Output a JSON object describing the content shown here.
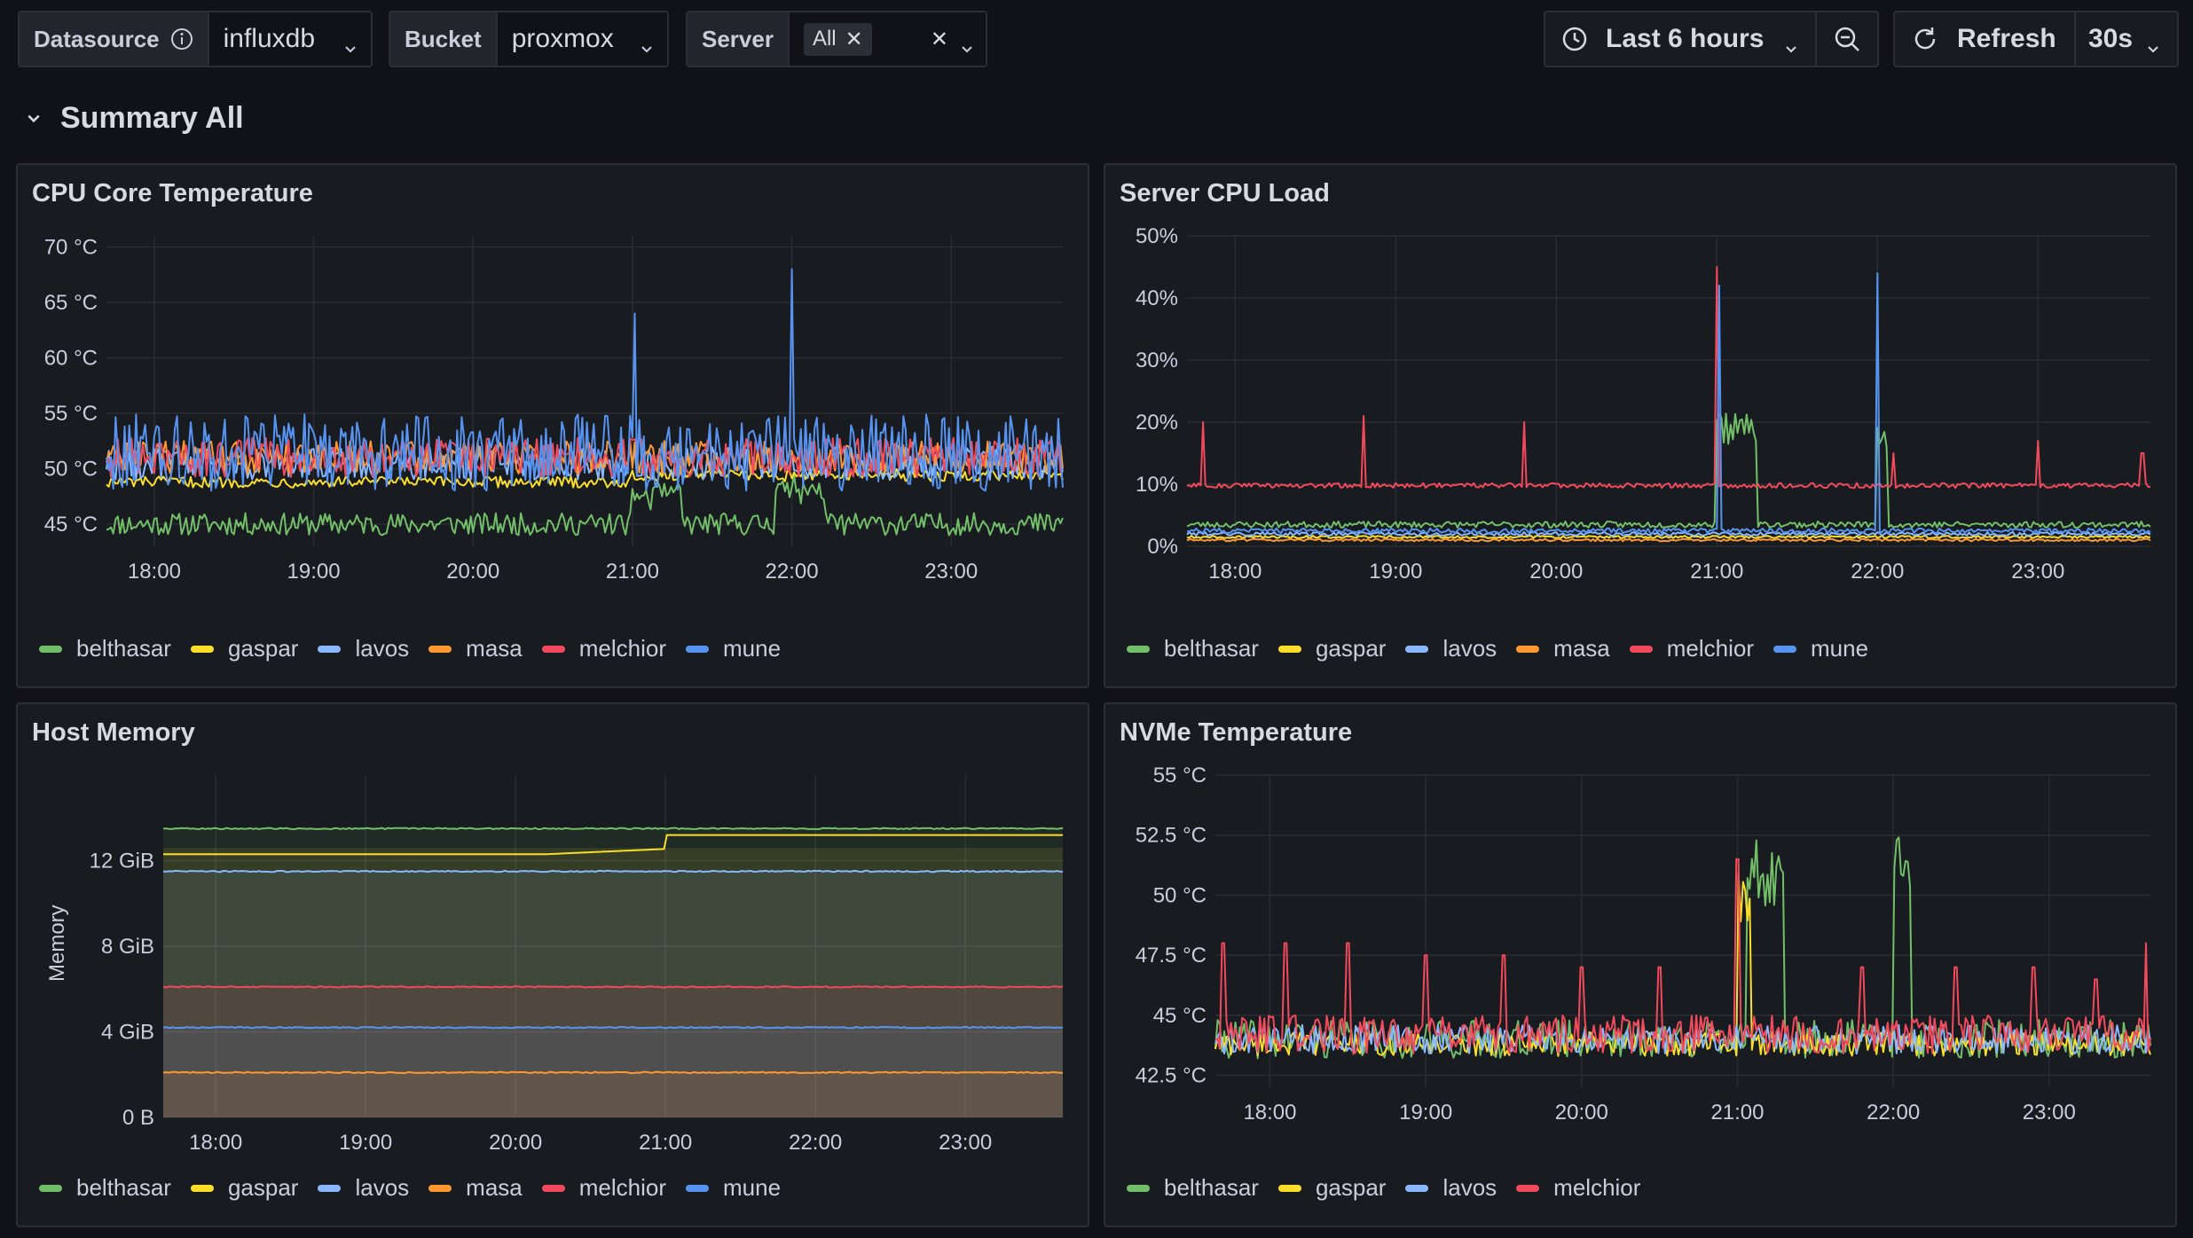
{
  "toolbar": {
    "datasource": {
      "label": "Datasource",
      "value": "influxdb"
    },
    "bucket": {
      "label": "Bucket",
      "value": "proxmox"
    },
    "server": {
      "label": "Server",
      "chip": "All"
    },
    "time_range": "Last 6 hours",
    "refresh_label": "Refresh",
    "refresh_interval": "30s"
  },
  "row": {
    "title": "Summary All"
  },
  "colors": {
    "belthasar": "#73bf69",
    "gaspar": "#fade2a",
    "lavos": "#8ab8ff",
    "masa": "#ff9830",
    "melchior": "#f2495c",
    "mune": "#5794f2"
  },
  "panels": [
    {
      "id": "cpu-temp",
      "title": "CPU Core Temperature",
      "legend": [
        "belthasar",
        "gaspar",
        "lavos",
        "masa",
        "melchior",
        "mune"
      ],
      "chart_data": {
        "type": "line",
        "x_ticks": [
          "18:00",
          "19:00",
          "20:00",
          "21:00",
          "22:00",
          "23:00"
        ],
        "x_range": [
          17.7,
          23.7
        ],
        "y_ticks": [
          {
            "v": 45,
            "label": "45 °C"
          },
          {
            "v": 50,
            "label": "50 °C"
          },
          {
            "v": 55,
            "label": "55 °C"
          },
          {
            "v": 60,
            "label": "60 °C"
          },
          {
            "v": 65,
            "label": "65 °C"
          },
          {
            "v": 70,
            "label": "70 °C"
          }
        ],
        "ylim": [
          43,
          71
        ],
        "series": [
          {
            "name": "belthasar",
            "base": 45.0,
            "noise": 1.0,
            "events": [
              [
                21.0,
                21.3,
                48
              ],
              [
                21.9,
                22.2,
                48.5
              ]
            ],
            "spikes": []
          },
          {
            "name": "gaspar",
            "base": 48.8,
            "noise": 0.5,
            "events": [
              [
                21.0,
                23.7,
                49.5
              ]
            ],
            "spikes": []
          },
          {
            "name": "lavos",
            "base": 50.5,
            "noise": 1.5,
            "events": [],
            "spikes": []
          },
          {
            "name": "masa",
            "base": 51.0,
            "noise": 1.5,
            "events": [],
            "spikes": []
          },
          {
            "name": "melchior",
            "base": 51.0,
            "noise": 1.8,
            "events": [],
            "spikes": []
          },
          {
            "name": "mune",
            "base": 51.5,
            "noise": 3.5,
            "events": [],
            "spikes": [
              [
                21.02,
                64
              ],
              [
                22.0,
                68
              ]
            ]
          }
        ]
      }
    },
    {
      "id": "cpu-load",
      "title": "Server CPU Load",
      "legend": [
        "belthasar",
        "gaspar",
        "lavos",
        "masa",
        "melchior",
        "mune"
      ],
      "chart_data": {
        "type": "line",
        "x_ticks": [
          "18:00",
          "19:00",
          "20:00",
          "21:00",
          "22:00",
          "23:00"
        ],
        "x_range": [
          17.7,
          23.7
        ],
        "y_ticks": [
          {
            "v": 0,
            "label": "0%"
          },
          {
            "v": 10,
            "label": "10%"
          },
          {
            "v": 20,
            "label": "20%"
          },
          {
            "v": 30,
            "label": "30%"
          },
          {
            "v": 40,
            "label": "40%"
          },
          {
            "v": 50,
            "label": "50%"
          }
        ],
        "ylim": [
          0,
          50
        ],
        "series": [
          {
            "name": "belthasar",
            "base": 3.5,
            "noise": 0.5,
            "events": [
              [
                21.0,
                21.25,
                21
              ],
              [
                22.0,
                22.07,
                20
              ]
            ],
            "spikes": []
          },
          {
            "name": "gaspar",
            "base": 1.5,
            "noise": 0.2,
            "events": [],
            "spikes": []
          },
          {
            "name": "lavos",
            "base": 2.0,
            "noise": 0.3,
            "events": [],
            "spikes": []
          },
          {
            "name": "masa",
            "base": 1.0,
            "noise": 0.2,
            "events": [],
            "spikes": []
          },
          {
            "name": "melchior",
            "base": 9.8,
            "noise": 0.4,
            "events": [],
            "spikes": [
              [
                17.8,
                20
              ],
              [
                18.8,
                21
              ],
              [
                19.8,
                20
              ],
              [
                21.0,
                45
              ],
              [
                22.1,
                15
              ],
              [
                23.0,
                17
              ],
              [
                23.65,
                15
              ]
            ]
          },
          {
            "name": "mune",
            "base": 2.5,
            "noise": 0.4,
            "events": [],
            "spikes": [
              [
                21.02,
                42
              ],
              [
                22.0,
                44
              ]
            ]
          }
        ]
      }
    },
    {
      "id": "host-memory",
      "title": "Host Memory",
      "y_label": "Memory",
      "legend": [
        "belthasar",
        "gaspar",
        "lavos",
        "masa",
        "melchior",
        "mune"
      ],
      "chart_data": {
        "type": "area",
        "x_ticks": [
          "18:00",
          "19:00",
          "20:00",
          "21:00",
          "22:00",
          "23:00"
        ],
        "x_range": [
          17.65,
          23.65
        ],
        "y_ticks": [
          {
            "v": 0,
            "label": "0 B"
          },
          {
            "v": 4,
            "label": "4 GiB"
          },
          {
            "v": 8,
            "label": "8 GiB"
          },
          {
            "v": 12,
            "label": "12 GiB"
          }
        ],
        "ylim": [
          0,
          16
        ],
        "series": [
          {
            "name": "belthasar",
            "values_gib": 13.5
          },
          {
            "name": "gaspar",
            "values_gib": 12.6
          },
          {
            "name": "lavos",
            "values_gib": 11.5
          },
          {
            "name": "melchior",
            "values_gib": 6.1
          },
          {
            "name": "mune",
            "values_gib": 4.2
          },
          {
            "name": "masa",
            "values_gib": 2.1
          }
        ]
      }
    },
    {
      "id": "nvme-temp",
      "title": "NVMe Temperature",
      "legend": [
        "belthasar",
        "gaspar",
        "lavos",
        "melchior"
      ],
      "chart_data": {
        "type": "line",
        "x_ticks": [
          "18:00",
          "19:00",
          "20:00",
          "21:00",
          "22:00",
          "23:00"
        ],
        "x_range": [
          17.65,
          23.65
        ],
        "y_ticks": [
          {
            "v": 42.5,
            "label": "42.5 °C"
          },
          {
            "v": 45,
            "label": "45 °C"
          },
          {
            "v": 47.5,
            "label": "47.5 °C"
          },
          {
            "v": 50,
            "label": "50 °C"
          },
          {
            "v": 52.5,
            "label": "52.5 °C"
          },
          {
            "v": 55,
            "label": "55 °C"
          }
        ],
        "ylim": [
          42,
          55
        ],
        "series": [
          {
            "name": "belthasar",
            "base": 44.0,
            "noise": 0.8,
            "events": [
              [
                21.05,
                21.3,
                52
              ],
              [
                22.0,
                22.12,
                52.5
              ]
            ],
            "spikes": []
          },
          {
            "name": "gaspar",
            "base": 43.8,
            "noise": 0.5,
            "events": [
              [
                21.0,
                21.08,
                51
              ]
            ],
            "spikes": []
          },
          {
            "name": "lavos",
            "base": 44.0,
            "noise": 0.6,
            "events": [],
            "spikes": []
          },
          {
            "name": "melchior",
            "base": 44.2,
            "noise": 0.8,
            "events": [],
            "spikes": [
              [
                17.7,
                48
              ],
              [
                18.1,
                48
              ],
              [
                18.5,
                48
              ],
              [
                19.0,
                47.5
              ],
              [
                19.5,
                47.5
              ],
              [
                20.0,
                47
              ],
              [
                20.5,
                47
              ],
              [
                21.0,
                51.5
              ],
              [
                21.8,
                47
              ],
              [
                22.4,
                47
              ],
              [
                22.9,
                47
              ],
              [
                23.3,
                46.5
              ],
              [
                23.62,
                48
              ]
            ]
          }
        ]
      }
    }
  ]
}
